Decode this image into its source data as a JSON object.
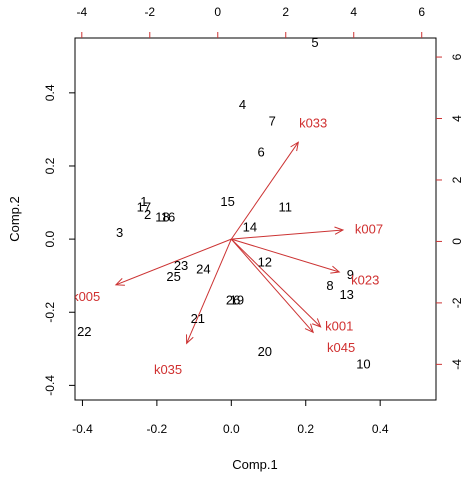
{
  "chart_data": {
    "type": "scatter",
    "subtype": "pca-biplot",
    "title": "",
    "xlabel": "Comp.1",
    "ylabel": "Comp.2",
    "xlim": [
      -0.42,
      0.55
    ],
    "ylim": [
      -0.44,
      0.55
    ],
    "x_ticks": [
      "-0.4",
      "-0.2",
      "0.0",
      "0.2",
      "0.4"
    ],
    "y_ticks": [
      "-0.4",
      "-0.2",
      "0.0",
      "0.2",
      "0.4"
    ],
    "x2_ticks": [
      "-4",
      "-2",
      "0",
      "2",
      "4",
      "6"
    ],
    "y2_ticks": [
      "-4",
      "-2",
      "0",
      "2",
      "4",
      "6"
    ],
    "x2_range": [
      -4.2,
      6.42
    ],
    "y2_range": [
      -5.16,
      6.62
    ],
    "arrow_color": "#cc3333",
    "observation_color": "#000000",
    "observations": [
      {
        "label": "1",
        "x": -0.235,
        "y": 0.1
      },
      {
        "label": "2",
        "x": -0.225,
        "y": 0.065
      },
      {
        "label": "3",
        "x": -0.3,
        "y": 0.015
      },
      {
        "label": "4",
        "x": 0.03,
        "y": 0.365
      },
      {
        "label": "5",
        "x": 0.225,
        "y": 0.535
      },
      {
        "label": "6",
        "x": 0.08,
        "y": 0.235
      },
      {
        "label": "7",
        "x": 0.11,
        "y": 0.32
      },
      {
        "label": "8",
        "x": 0.265,
        "y": -0.13
      },
      {
        "label": "9",
        "x": 0.32,
        "y": -0.1
      },
      {
        "label": "10",
        "x": 0.355,
        "y": -0.345
      },
      {
        "label": "11",
        "x": 0.145,
        "y": 0.085
      },
      {
        "label": "12",
        "x": 0.09,
        "y": -0.065
      },
      {
        "label": "13",
        "x": 0.31,
        "y": -0.155
      },
      {
        "label": "14",
        "x": 0.05,
        "y": 0.03
      },
      {
        "label": "15",
        "x": -0.01,
        "y": 0.1
      },
      {
        "label": "16",
        "x": -0.17,
        "y": 0.058
      },
      {
        "label": "17",
        "x": -0.235,
        "y": 0.085
      },
      {
        "label": "18",
        "x": -0.185,
        "y": 0.058
      },
      {
        "label": "19",
        "x": 0.015,
        "y": -0.17
      },
      {
        "label": "20",
        "x": 0.09,
        "y": -0.31
      },
      {
        "label": "21",
        "x": -0.09,
        "y": -0.22
      },
      {
        "label": "22",
        "x": -0.395,
        "y": -0.255
      },
      {
        "label": "23",
        "x": -0.135,
        "y": -0.075
      },
      {
        "label": "24",
        "x": -0.075,
        "y": -0.085
      },
      {
        "label": "25",
        "x": -0.155,
        "y": -0.105
      },
      {
        "label": "26",
        "x": 0.005,
        "y": -0.17
      }
    ],
    "loadings": [
      {
        "label": "k033",
        "x": 0.18,
        "y": 0.265,
        "label_x": 0.22,
        "label_y": 0.315
      },
      {
        "label": "k007",
        "x": 0.3,
        "y": 0.025,
        "label_x": 0.37,
        "label_y": 0.025
      },
      {
        "label": "k023",
        "x": 0.29,
        "y": -0.09,
        "label_x": 0.36,
        "label_y": -0.115
      },
      {
        "label": "k001",
        "x": 0.24,
        "y": -0.24,
        "label_x": 0.29,
        "label_y": -0.24
      },
      {
        "label": "k045",
        "x": 0.22,
        "y": -0.255,
        "label_x": 0.295,
        "label_y": -0.3
      },
      {
        "label": "k035",
        "x": -0.12,
        "y": -0.285,
        "label_x": -0.17,
        "label_y": -0.36
      },
      {
        "label": "k005",
        "x": -0.31,
        "y": -0.125,
        "label_x": -0.39,
        "label_y": -0.16
      }
    ]
  }
}
